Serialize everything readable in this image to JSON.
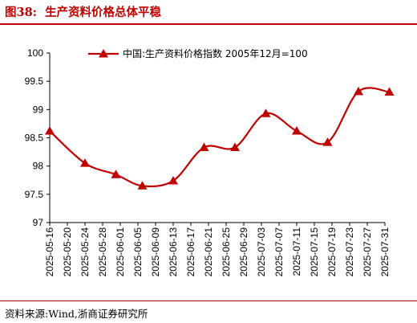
{
  "header": {
    "figure_no": "图38:",
    "title": "生产资料价格总体平稳"
  },
  "footer": {
    "source": "资料来源:Wind,浙商证券研究所"
  },
  "chart_data": {
    "type": "line",
    "title": "生产资料价格总体平稳",
    "categories": [
      "2025-05-16",
      "2025-05-20",
      "2025-05-24",
      "2025-05-28",
      "2025-06-01",
      "2025-06-05",
      "2025-06-09",
      "2025-06-13",
      "2025-06-17",
      "2025-06-21",
      "2025-06-25",
      "2025-06-29",
      "2025-07-03",
      "2025-07-07",
      "2025-07-11",
      "2025-07-15",
      "2025-07-19",
      "2025-07-23",
      "2025-07-27",
      "2025-07-31"
    ],
    "series": [
      {
        "name": "中国:生产资料价格指数 2005年12月=100",
        "color": "#c00000",
        "marker": "triangle",
        "smooth": true,
        "points": [
          {
            "x": "2025-05-16",
            "y": 98.62
          },
          {
            "x": "2025-05-24",
            "y": 98.05
          },
          {
            "x": "2025-05-31",
            "y": 97.85
          },
          {
            "x": "2025-06-06",
            "y": 97.65
          },
          {
            "x": "2025-06-13",
            "y": 97.74
          },
          {
            "x": "2025-06-20",
            "y": 98.33
          },
          {
            "x": "2025-06-27",
            "y": 98.33
          },
          {
            "x": "2025-07-04",
            "y": 98.93
          },
          {
            "x": "2025-07-11",
            "y": 98.62
          },
          {
            "x": "2025-07-18",
            "y": 98.42
          },
          {
            "x": "2025-07-25",
            "y": 99.32
          },
          {
            "x": "2025-08-01",
            "y": 99.31
          }
        ]
      }
    ],
    "ylim": [
      97,
      100
    ],
    "yticks": [
      "97",
      "97.5",
      "98",
      "98.5",
      "99",
      "99.5",
      "100"
    ],
    "xlabel": "",
    "ylabel": "",
    "grid": false,
    "legend": "top"
  }
}
